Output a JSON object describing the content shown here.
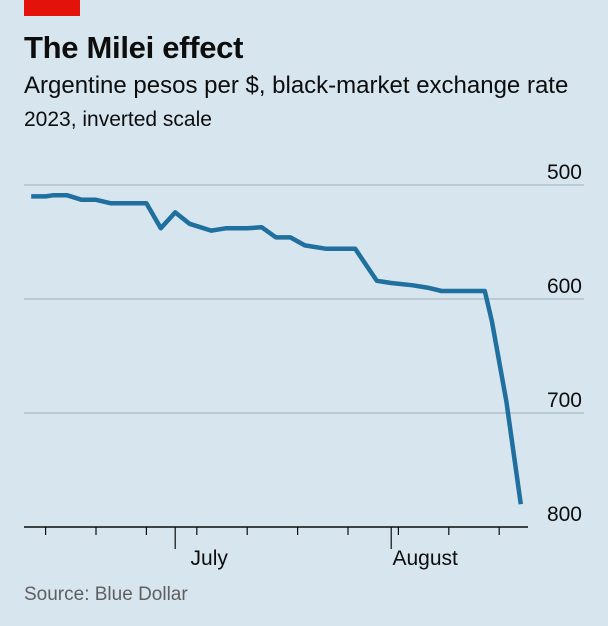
{
  "header": {
    "title": "The Milei effect",
    "subtitle": "Argentine pesos per $, black-market exchange rate",
    "note": "2023, inverted scale"
  },
  "footer": {
    "source": "Source: Blue Dollar"
  },
  "colors": {
    "line": "#1f6f9f",
    "background": "#d7e5ef",
    "brand": "#e3120b",
    "grid": "#b3c1cb",
    "axis": "#0d0d0d"
  },
  "chart_data": {
    "type": "line",
    "title": "The Milei effect",
    "subtitle": "Argentine pesos per $, black-market exchange rate",
    "note": "2023, inverted scale",
    "xlabel": "",
    "ylabel": "",
    "y_inverted": true,
    "ylim": [
      500,
      800
    ],
    "yticks": [
      500,
      600,
      700,
      800
    ],
    "xlim": [
      "2023-06-13",
      "2023-08-22"
    ],
    "xticks": [
      "2023-06-16",
      "2023-06-23",
      "2023-06-30",
      "2023-07-07",
      "2023-07-14",
      "2023-07-21",
      "2023-07-28",
      "2023-08-04",
      "2023-08-11",
      "2023-08-18"
    ],
    "xtick_labels": [
      {
        "date": "2023-07-04",
        "label": "July"
      },
      {
        "date": "2023-08-03",
        "label": "August"
      }
    ],
    "grid": true,
    "series": [
      {
        "x": [
          "2023-06-14",
          "2023-06-16",
          "2023-06-17",
          "2023-06-19",
          "2023-06-21",
          "2023-06-23",
          "2023-06-25",
          "2023-06-28",
          "2023-06-30",
          "2023-07-02",
          "2023-07-04",
          "2023-07-06",
          "2023-07-09",
          "2023-07-11",
          "2023-07-14",
          "2023-07-16",
          "2023-07-18",
          "2023-07-20",
          "2023-07-22",
          "2023-07-25",
          "2023-07-27",
          "2023-07-29",
          "2023-08-01",
          "2023-08-03",
          "2023-08-06",
          "2023-08-08",
          "2023-08-10",
          "2023-08-12",
          "2023-08-14",
          "2023-08-16",
          "2023-08-17",
          "2023-08-18",
          "2023-08-19",
          "2023-08-21"
        ],
        "values": [
          510,
          510,
          509,
          509,
          513,
          513,
          516,
          516,
          516,
          538,
          524,
          534,
          540,
          538,
          538,
          537,
          546,
          546,
          553,
          556,
          556,
          556,
          584,
          586,
          588,
          590,
          593,
          593,
          593,
          593,
          620,
          655,
          690,
          780
        ]
      }
    ]
  }
}
